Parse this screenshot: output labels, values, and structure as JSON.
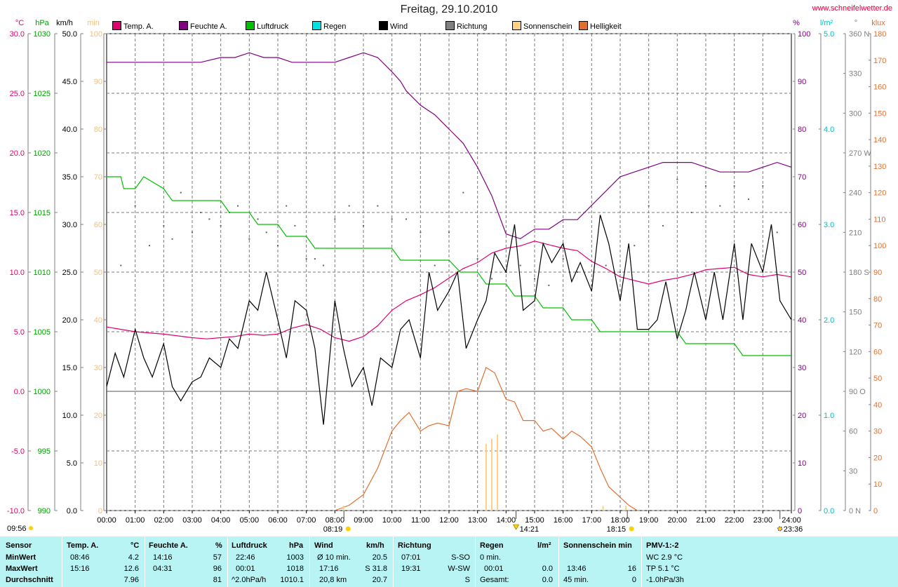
{
  "title": "Freitag, 29.10.2010",
  "site": "www.schneifelwetter.de",
  "legend": [
    {
      "label": "Temp. A.",
      "color": "#e0006e"
    },
    {
      "label": "Feuchte A.",
      "color": "#800080"
    },
    {
      "label": "Luftdruck",
      "color": "#00c000"
    },
    {
      "label": "Regen",
      "color": "#00e0e0"
    },
    {
      "label": "Wind",
      "color": "#000000"
    },
    {
      "label": "Richtung",
      "color": "#808080"
    },
    {
      "label": "Sonnenschein",
      "color": "#ffd080"
    },
    {
      "label": "Helligkeit",
      "color": "#e07030"
    }
  ],
  "axis_units": {
    "temp": "°C",
    "pressure": "hPa",
    "wind": "km/h",
    "sun": "min",
    "humidity": "%",
    "rain": "l/m²",
    "direction": "°",
    "light": "klux"
  },
  "chart_data": {
    "type": "line",
    "x_ticks": [
      "00:00",
      "01:00",
      "02:00",
      "03:00",
      "04:00",
      "05:00",
      "06:00",
      "07:00",
      "08:00",
      "09:00",
      "10:00",
      "11:00",
      "12:00",
      "13:00",
      "14:00",
      "15:00",
      "16:00",
      "17:00",
      "18:00",
      "19:00",
      "20:00",
      "21:00",
      "22:00",
      "23:00",
      "24:00"
    ],
    "xlim": [
      0,
      24
    ],
    "axes": {
      "temp": {
        "ylim": [
          -10,
          30
        ],
        "ticks": [
          "30.0",
          "25.0",
          "20.0",
          "15.0",
          "10.0",
          "5.0",
          "0.0",
          "-5.0",
          "-10.0"
        ],
        "color": "#e0006e"
      },
      "pressure": {
        "ylim": [
          990,
          1030
        ],
        "ticks": [
          "1030",
          "1025",
          "1020",
          "1015",
          "1010",
          "1005",
          "1000",
          "995",
          "990"
        ],
        "color": "#00c000"
      },
      "wind": {
        "ylim": [
          0,
          50
        ],
        "ticks": [
          "50.0",
          "45.0",
          "40.0",
          "35.0",
          "30.0",
          "25.0",
          "20.0",
          "15.0",
          "10.0",
          "5.0",
          "0.0"
        ],
        "color": "#000000"
      },
      "sun": {
        "ylim": [
          0,
          100
        ],
        "ticks": [
          "100",
          "90",
          "80",
          "70",
          "60",
          "50",
          "40",
          "30",
          "20",
          "10",
          "0"
        ],
        "color": "#ffd080"
      },
      "humidity": {
        "ylim": [
          0,
          100
        ],
        "ticks": [
          "100",
          "90",
          "80",
          "70",
          "60",
          "50",
          "40",
          "30",
          "20",
          "10",
          "0"
        ],
        "color": "#800080"
      },
      "rain": {
        "ylim": [
          0,
          5
        ],
        "ticks": [
          "5.0",
          "4.0",
          "3.0",
          "2.0",
          "1.0",
          "0.0"
        ],
        "color": "#00c0c0"
      },
      "direction": {
        "ylim": [
          0,
          360
        ],
        "ticks": [
          "360 N",
          "330",
          "300",
          "270 W",
          "240",
          "210",
          "180 S",
          "150",
          "120",
          "90 O",
          "60",
          "30",
          "0 N"
        ],
        "color": "#808080"
      },
      "light": {
        "ylim": [
          0,
          180
        ],
        "ticks": [
          "180",
          "170",
          "160",
          "150",
          "140",
          "130",
          "120",
          "110",
          "100",
          "90",
          "80",
          "70",
          "60",
          "50",
          "40",
          "30",
          "20",
          "10",
          "0"
        ],
        "color": "#e07030"
      }
    },
    "series": [
      {
        "name": "Temp. A.",
        "axis": "temp",
        "color": "#e0006e",
        "x": [
          0,
          0.5,
          1,
          2,
          3,
          3.5,
          4,
          4.5,
          5,
          5.5,
          6,
          6.5,
          7,
          7.5,
          8,
          8.5,
          9,
          9.5,
          10,
          10.5,
          11,
          11.5,
          12,
          12.5,
          13,
          13.5,
          14,
          14.5,
          15,
          15.5,
          16,
          16.5,
          17,
          17.5,
          18,
          18.5,
          19,
          19.5,
          20,
          20.5,
          21,
          21.5,
          22,
          22.5,
          23,
          23.5,
          24
        ],
        "y": [
          5.4,
          5.2,
          5.0,
          4.8,
          4.5,
          4.4,
          4.5,
          4.6,
          4.8,
          4.7,
          4.8,
          5.3,
          5.6,
          5.2,
          4.5,
          4.2,
          4.6,
          5.5,
          6.8,
          7.6,
          8.1,
          8.7,
          9.5,
          10.3,
          10.8,
          11.6,
          12.0,
          12.2,
          12.6,
          12.3,
          12.0,
          11.8,
          10.9,
          10.3,
          9.6,
          9.3,
          9.0,
          9.3,
          9.5,
          9.8,
          10.2,
          10.3,
          10.4,
          9.8,
          9.6,
          9.8,
          9.6
        ]
      },
      {
        "name": "Feuchte A.",
        "axis": "humidity",
        "color": "#800080",
        "x": [
          0,
          1,
          2,
          3,
          3.3,
          4,
          4.5,
          5,
          5.5,
          6,
          6.5,
          7,
          8,
          8.5,
          9,
          9.5,
          10,
          10.3,
          10.5,
          11,
          11.5,
          12,
          12.5,
          13,
          13.5,
          14,
          14.5,
          15,
          15.5,
          16,
          16.5,
          17,
          17.5,
          18,
          18.5,
          19,
          19.5,
          20,
          20.5,
          21,
          21.5,
          22,
          22.5,
          23,
          23.5,
          24
        ],
        "y": [
          94,
          94,
          94,
          94,
          94,
          95,
          95,
          96,
          95,
          95,
          94,
          94,
          94,
          95,
          96,
          95,
          92,
          90,
          88,
          85,
          83,
          80,
          77,
          72,
          66,
          58,
          57,
          59,
          59,
          61,
          61,
          64,
          67,
          70,
          71,
          72,
          73,
          73,
          73,
          72,
          71,
          71,
          71,
          72,
          73,
          72
        ]
      },
      {
        "name": "Luftdruck",
        "axis": "pressure",
        "color": "#00c000",
        "x": [
          0,
          0.5,
          0.6,
          1,
          1.3,
          2,
          2.3,
          4,
          4.3,
          5,
          5.3,
          6,
          6.3,
          7,
          7.3,
          10,
          10.3,
          12,
          12.4,
          13,
          13.3,
          14,
          14.3,
          15,
          15.3,
          16,
          16.3,
          17,
          17.3,
          18,
          18.3,
          19,
          19.3,
          20,
          20.3,
          21,
          21.3,
          22,
          22.3,
          23,
          23.3,
          24
        ],
        "y": [
          1018,
          1018,
          1017,
          1017,
          1018,
          1017,
          1016,
          1016,
          1015,
          1015,
          1014,
          1014,
          1013,
          1013,
          1012,
          1012,
          1011,
          1011,
          1010,
          1010,
          1009,
          1009,
          1008,
          1008,
          1007,
          1007,
          1006,
          1006,
          1005,
          1005,
          1005,
          1005,
          1005,
          1005,
          1004,
          1004,
          1004,
          1004,
          1003,
          1003,
          1003,
          1003
        ]
      },
      {
        "name": "Wind",
        "axis": "wind",
        "color": "#000000",
        "x": [
          0,
          0.3,
          0.6,
          1,
          1.3,
          1.6,
          2,
          2.3,
          2.6,
          3,
          3.3,
          3.6,
          4,
          4.3,
          4.6,
          5,
          5.3,
          5.6,
          6,
          6.3,
          6.6,
          7,
          7.3,
          7.6,
          8,
          8.3,
          8.6,
          9,
          9.3,
          9.6,
          10,
          10.3,
          10.6,
          11,
          11.3,
          11.6,
          12,
          12.3,
          12.6,
          13,
          13.3,
          13.6,
          14,
          14.3,
          14.6,
          15,
          15.3,
          15.6,
          16,
          16.3,
          16.6,
          17,
          17.3,
          17.6,
          18,
          18.3,
          18.6,
          19,
          19.3,
          19.6,
          20,
          20.3,
          20.6,
          21,
          21.3,
          21.6,
          22,
          22.3,
          22.6,
          23,
          23.3,
          23.6,
          24
        ],
        "y": [
          13,
          16.5,
          14,
          19,
          16,
          14,
          17.5,
          13,
          11.5,
          13.5,
          14,
          16,
          15,
          18,
          17,
          22,
          21,
          25,
          20,
          16,
          22,
          21,
          17,
          9,
          22,
          17,
          13,
          15,
          11,
          16,
          15,
          19,
          20,
          16,
          25,
          21,
          23,
          25,
          17,
          20,
          22,
          27,
          25,
          30,
          21,
          22,
          28,
          26,
          28,
          24,
          26,
          23,
          31,
          28,
          22,
          28,
          19,
          19,
          20,
          24,
          18,
          21,
          25,
          20,
          25,
          20,
          28,
          20,
          28,
          25,
          30,
          22,
          20
        ]
      },
      {
        "name": "Helligkeit",
        "axis": "light",
        "color": "#e07030",
        "x": [
          8,
          8.5,
          9,
          9.5,
          10,
          10.3,
          10.6,
          11,
          11.3,
          11.6,
          12,
          12.3,
          12.6,
          13,
          13.3,
          13.6,
          14,
          14.3,
          14.6,
          15,
          15.3,
          15.6,
          16,
          16.3,
          16.6,
          17,
          17.3,
          17.6,
          18,
          18.3,
          18.6
        ],
        "y": [
          0,
          2,
          6,
          16,
          30,
          34,
          37,
          30,
          32,
          33,
          32,
          45,
          46,
          45,
          54,
          52,
          42,
          41,
          34,
          34,
          30,
          31,
          27,
          30,
          28,
          24,
          16,
          9,
          5,
          2,
          0
        ]
      },
      {
        "name": "Sonnenschein",
        "axis": "sun",
        "color": "#ffd080",
        "type": "bar",
        "x": [
          8.3,
          13.3,
          13.5,
          13.7,
          17.4,
          18.2
        ],
        "y": [
          1,
          14,
          15,
          16,
          1,
          1
        ]
      }
    ],
    "direction_points": {
      "axis": "direction",
      "x": [
        0.5,
        1,
        1.5,
        2,
        2.3,
        2.6,
        3,
        3.3,
        3.6,
        4,
        4.3,
        4.6,
        5,
        5.3,
        5.6,
        6,
        6.3,
        6.6,
        7,
        7.3,
        7.6,
        8,
        8.5,
        9,
        9.5,
        10,
        10.5,
        11,
        11.5,
        12,
        12.5,
        13,
        13.5,
        14,
        14.5,
        15,
        15.5,
        16,
        16.5,
        17,
        17.5,
        18,
        18.5,
        19,
        19.5,
        20,
        20.5,
        21,
        21.5,
        22,
        22.5,
        23,
        23.5
      ],
      "y": [
        185,
        230,
        200,
        215,
        205,
        240,
        210,
        225,
        220,
        215,
        225,
        230,
        205,
        220,
        210,
        200,
        230,
        215,
        190,
        190,
        185,
        220,
        230,
        215,
        230,
        220,
        220,
        210,
        185,
        210,
        240,
        190,
        175,
        180,
        185,
        175,
        170,
        190,
        180,
        170,
        185,
        180,
        200,
        230,
        215,
        250,
        225,
        245,
        230,
        245,
        235,
        245,
        210
      ]
    },
    "markers": [
      {
        "label": "08:19",
        "x": 8.317,
        "kind": "sunrise"
      },
      {
        "label": "14:21",
        "x": 14.35,
        "kind": "peak"
      },
      {
        "label": "18:15",
        "x": 18.25,
        "kind": "sunset"
      },
      {
        "label": "23:36",
        "x": 23.6,
        "kind": "moon"
      }
    ],
    "corner_time": "09:56"
  },
  "table": {
    "columns": [
      {
        "header": "Sensor",
        "unit": ""
      },
      {
        "header": "Temp. A.",
        "unit": "°C"
      },
      {
        "header": "Feuchte A.",
        "unit": "%"
      },
      {
        "header": "Luftdruck",
        "unit": "hPa"
      },
      {
        "header": "Wind",
        "unit": "km/h"
      },
      {
        "header": "Richtung",
        "unit": ""
      },
      {
        "header": "Regen",
        "unit": "l/m²"
      },
      {
        "header": "Sonnenschein min",
        "unit": ""
      },
      {
        "header": "PMV-1:-2",
        "unit": ""
      }
    ],
    "rows": [
      {
        "label": "MinWert",
        "temp_t": "08:46",
        "temp_v": "4.2",
        "hum_t": "14:16",
        "hum_v": "57",
        "pres_t": "22:46",
        "pres_v": "1003",
        "wind_t": "Ø 10 min.",
        "wind_v": "20.5",
        "dir_t": "07:01",
        "dir_v": "S-SO",
        "rain_t": "0 min.",
        "rain_v": "",
        "sun_t": "",
        "sun_v": "",
        "pmv": "WC 2.9 °C"
      },
      {
        "label": "MaxWert",
        "temp_t": "15:16",
        "temp_v": "12.6",
        "hum_t": "04:31",
        "hum_v": "96",
        "pres_t": "00:01",
        "pres_v": "1018",
        "wind_t": "17:16",
        "wind_v": "S 31.8",
        "dir_t": "19:31",
        "dir_v": "W-SW",
        "rain_t": "00:01",
        "rain_v": "0.0",
        "sun_t": "13:46",
        "sun_v": "16",
        "pmv": "TP 5.1 °C"
      },
      {
        "label": "Durchschnitt",
        "temp_t": "",
        "temp_v": "7.96",
        "hum_t": "",
        "hum_v": "81",
        "pres_t": "^2.0hPa/h",
        "pres_v": "1010.1",
        "wind_t": "20,8 km",
        "wind_v": "20.7",
        "dir_t": "",
        "dir_v": "S",
        "rain_t": "Gesamt:",
        "rain_v": "0.0",
        "sun_t": "45 min.",
        "sun_v": "0",
        "pmv": "-1.0hPa/3h"
      }
    ]
  }
}
